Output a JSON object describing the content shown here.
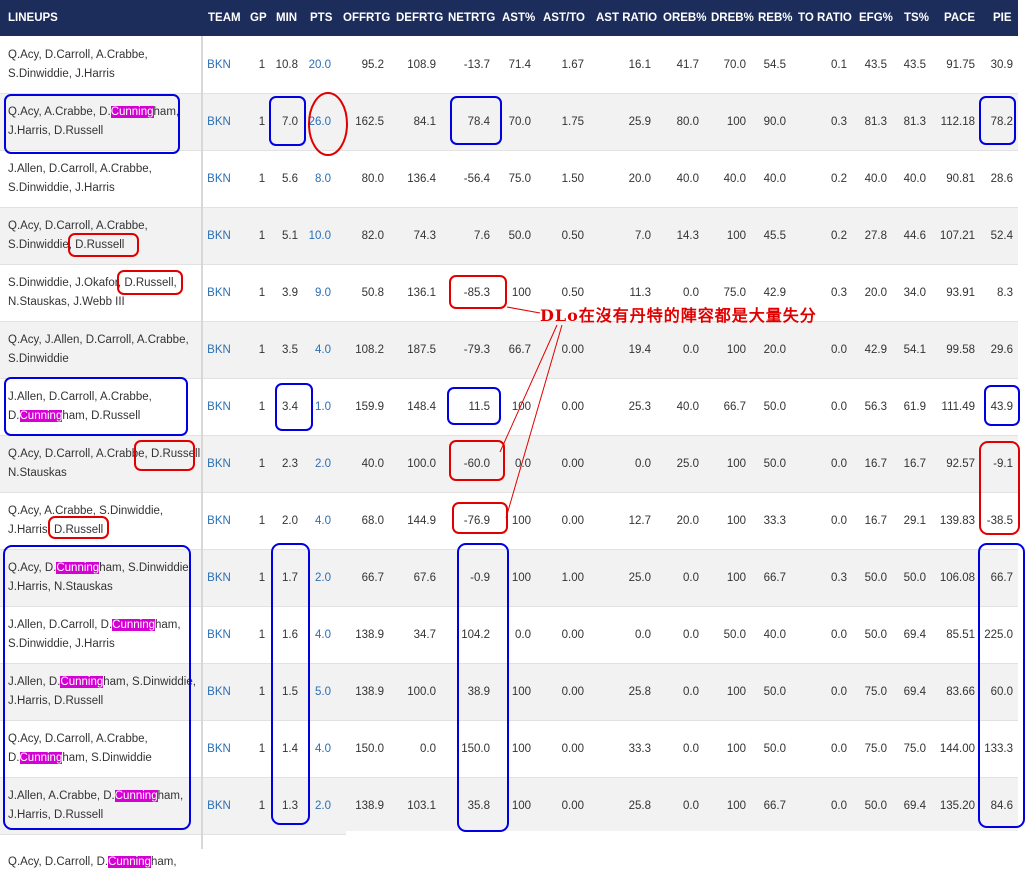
{
  "headers": [
    "LINEUPS",
    "TEAM",
    "GP",
    "MIN",
    "PTS",
    "OFFRTG",
    "DEFRTG",
    "NETRTG",
    "AST%",
    "AST/TO",
    "AST RATIO",
    "OREB%",
    "DREB%",
    "REB%",
    "TO RATIO",
    "EFG%",
    "TS%",
    "PACE",
    "PIE"
  ],
  "rows": [
    {
      "lineup": [
        [
          [
            "Q.Acy, D.Carroll, A.Crabbe,",
            false
          ]
        ],
        [
          [
            "S.Dinwiddie, J.Harris",
            false
          ]
        ]
      ],
      "team": "BKN",
      "gp": "1",
      "min": "10.8",
      "pts": "20.0",
      "offrtg": "95.2",
      "defrtg": "108.9",
      "netrtg": "-13.7",
      "ast_pct": "71.4",
      "ast_to": "1.67",
      "ast_ratio": "16.1",
      "oreb": "41.7",
      "dreb": "70.0",
      "reb": "54.5",
      "to_ratio": "0.1",
      "efg": "43.5",
      "ts": "43.5",
      "pace": "91.75",
      "pie": "30.9"
    },
    {
      "lineup": [
        [
          [
            "Q.Acy, A.Crabbe, D.",
            false
          ],
          [
            "Cunning",
            true
          ],
          [
            "ham,",
            false
          ]
        ],
        [
          [
            "J.Harris, D.Russell",
            false
          ]
        ]
      ],
      "team": "BKN",
      "gp": "1",
      "min": "7.0",
      "pts": "26.0",
      "offrtg": "162.5",
      "defrtg": "84.1",
      "netrtg": "78.4",
      "ast_pct": "70.0",
      "ast_to": "1.75",
      "ast_ratio": "25.9",
      "oreb": "80.0",
      "dreb": "100",
      "reb": "90.0",
      "to_ratio": "0.3",
      "efg": "81.3",
      "ts": "81.3",
      "pace": "112.18",
      "pie": "78.2"
    },
    {
      "lineup": [
        [
          [
            "J.Allen, D.Carroll, A.Crabbe,",
            false
          ]
        ],
        [
          [
            "S.Dinwiddie, J.Harris",
            false
          ]
        ]
      ],
      "team": "BKN",
      "gp": "1",
      "min": "5.6",
      "pts": "8.0",
      "offrtg": "80.0",
      "defrtg": "136.4",
      "netrtg": "-56.4",
      "ast_pct": "75.0",
      "ast_to": "1.50",
      "ast_ratio": "20.0",
      "oreb": "40.0",
      "dreb": "40.0",
      "reb": "40.0",
      "to_ratio": "0.2",
      "efg": "40.0",
      "ts": "40.0",
      "pace": "90.81",
      "pie": "28.6"
    },
    {
      "lineup": [
        [
          [
            "Q.Acy, D.Carroll, A.Crabbe,",
            false
          ]
        ],
        [
          [
            "S.Dinwiddie, D.Russell",
            false
          ]
        ]
      ],
      "team": "BKN",
      "gp": "1",
      "min": "5.1",
      "pts": "10.0",
      "offrtg": "82.0",
      "defrtg": "74.3",
      "netrtg": "7.6",
      "ast_pct": "50.0",
      "ast_to": "0.50",
      "ast_ratio": "7.0",
      "oreb": "14.3",
      "dreb": "100",
      "reb": "45.5",
      "to_ratio": "0.2",
      "efg": "27.8",
      "ts": "44.6",
      "pace": "107.21",
      "pie": "52.4"
    },
    {
      "lineup": [
        [
          [
            "S.Dinwiddie, J.Okafor, D.Russell,",
            false
          ]
        ],
        [
          [
            "N.Stauskas, J.Webb III",
            false
          ]
        ]
      ],
      "team": "BKN",
      "gp": "1",
      "min": "3.9",
      "pts": "9.0",
      "offrtg": "50.8",
      "defrtg": "136.1",
      "netrtg": "-85.3",
      "ast_pct": "100",
      "ast_to": "0.50",
      "ast_ratio": "11.3",
      "oreb": "0.0",
      "dreb": "75.0",
      "reb": "42.9",
      "to_ratio": "0.3",
      "efg": "20.0",
      "ts": "34.0",
      "pace": "93.91",
      "pie": "8.3"
    },
    {
      "lineup": [
        [
          [
            "Q.Acy, J.Allen, D.Carroll, A.Crabbe,",
            false
          ]
        ],
        [
          [
            "S.Dinwiddie",
            false
          ]
        ]
      ],
      "team": "BKN",
      "gp": "1",
      "min": "3.5",
      "pts": "4.0",
      "offrtg": "108.2",
      "defrtg": "187.5",
      "netrtg": "-79.3",
      "ast_pct": "66.7",
      "ast_to": "0.00",
      "ast_ratio": "19.4",
      "oreb": "0.0",
      "dreb": "100",
      "reb": "20.0",
      "to_ratio": "0.0",
      "efg": "42.9",
      "ts": "54.1",
      "pace": "99.58",
      "pie": "29.6"
    },
    {
      "lineup": [
        [
          [
            "J.Allen, D.Carroll, A.Crabbe,",
            false
          ]
        ],
        [
          [
            "D.",
            false
          ],
          [
            "Cunning",
            true
          ],
          [
            "ham, D.Russell",
            false
          ]
        ]
      ],
      "team": "BKN",
      "gp": "1",
      "min": "3.4",
      "pts": "1.0",
      "offrtg": "159.9",
      "defrtg": "148.4",
      "netrtg": "11.5",
      "ast_pct": "100",
      "ast_to": "0.00",
      "ast_ratio": "25.3",
      "oreb": "40.0",
      "dreb": "66.7",
      "reb": "50.0",
      "to_ratio": "0.0",
      "efg": "56.3",
      "ts": "61.9",
      "pace": "111.49",
      "pie": "43.9"
    },
    {
      "lineup": [
        [
          [
            "Q.Acy, D.Carroll, A.Crabbe, D.Russell,",
            false
          ]
        ],
        [
          [
            "N.Stauskas",
            false
          ]
        ]
      ],
      "team": "BKN",
      "gp": "1",
      "min": "2.3",
      "pts": "2.0",
      "offrtg": "40.0",
      "defrtg": "100.0",
      "netrtg": "-60.0",
      "ast_pct": "0.0",
      "ast_to": "0.00",
      "ast_ratio": "0.0",
      "oreb": "25.0",
      "dreb": "100",
      "reb": "50.0",
      "to_ratio": "0.0",
      "efg": "16.7",
      "ts": "16.7",
      "pace": "92.57",
      "pie": "-9.1"
    },
    {
      "lineup": [
        [
          [
            "Q.Acy, A.Crabbe, S.Dinwiddie,",
            false
          ]
        ],
        [
          [
            "J.Harris, D.Russell",
            false
          ]
        ]
      ],
      "team": "BKN",
      "gp": "1",
      "min": "2.0",
      "pts": "4.0",
      "offrtg": "68.0",
      "defrtg": "144.9",
      "netrtg": "-76.9",
      "ast_pct": "100",
      "ast_to": "0.00",
      "ast_ratio": "12.7",
      "oreb": "20.0",
      "dreb": "100",
      "reb": "33.3",
      "to_ratio": "0.0",
      "efg": "16.7",
      "ts": "29.1",
      "pace": "139.83",
      "pie": "-38.5"
    },
    {
      "lineup": [
        [
          [
            "Q.Acy, D.",
            false
          ],
          [
            "Cunning",
            true
          ],
          [
            "ham, S.Dinwiddie,",
            false
          ]
        ],
        [
          [
            "J.Harris, N.Stauskas",
            false
          ]
        ]
      ],
      "team": "BKN",
      "gp": "1",
      "min": "1.7",
      "pts": "2.0",
      "offrtg": "66.7",
      "defrtg": "67.6",
      "netrtg": "-0.9",
      "ast_pct": "100",
      "ast_to": "1.00",
      "ast_ratio": "25.0",
      "oreb": "0.0",
      "dreb": "100",
      "reb": "66.7",
      "to_ratio": "0.3",
      "efg": "50.0",
      "ts": "50.0",
      "pace": "106.08",
      "pie": "66.7"
    },
    {
      "lineup": [
        [
          [
            "J.Allen, D.Carroll, D.",
            false
          ],
          [
            "Cunning",
            true
          ],
          [
            "ham,",
            false
          ]
        ],
        [
          [
            "S.Dinwiddie, J.Harris",
            false
          ]
        ]
      ],
      "team": "BKN",
      "gp": "1",
      "min": "1.6",
      "pts": "4.0",
      "offrtg": "138.9",
      "defrtg": "34.7",
      "netrtg": "104.2",
      "ast_pct": "0.0",
      "ast_to": "0.00",
      "ast_ratio": "0.0",
      "oreb": "0.0",
      "dreb": "50.0",
      "reb": "40.0",
      "to_ratio": "0.0",
      "efg": "50.0",
      "ts": "69.4",
      "pace": "85.51",
      "pie": "225.0"
    },
    {
      "lineup": [
        [
          [
            "J.Allen, D.",
            false
          ],
          [
            "Cunning",
            true
          ],
          [
            "ham, S.Dinwiddie,",
            false
          ]
        ],
        [
          [
            "J.Harris, D.Russell",
            false
          ]
        ]
      ],
      "team": "BKN",
      "gp": "1",
      "min": "1.5",
      "pts": "5.0",
      "offrtg": "138.9",
      "defrtg": "100.0",
      "netrtg": "38.9",
      "ast_pct": "100",
      "ast_to": "0.00",
      "ast_ratio": "25.8",
      "oreb": "0.0",
      "dreb": "100",
      "reb": "50.0",
      "to_ratio": "0.0",
      "efg": "75.0",
      "ts": "69.4",
      "pace": "83.66",
      "pie": "60.0"
    },
    {
      "lineup": [
        [
          [
            "Q.Acy, D.Carroll, A.Crabbe,",
            false
          ]
        ],
        [
          [
            "D.",
            false
          ],
          [
            "Cunning",
            true
          ],
          [
            "ham, S.Dinwiddie",
            false
          ]
        ]
      ],
      "team": "BKN",
      "gp": "1",
      "min": "1.4",
      "pts": "4.0",
      "offrtg": "150.0",
      "defrtg": "0.0",
      "netrtg": "150.0",
      "ast_pct": "100",
      "ast_to": "0.00",
      "ast_ratio": "33.3",
      "oreb": "0.0",
      "dreb": "100",
      "reb": "50.0",
      "to_ratio": "0.0",
      "efg": "75.0",
      "ts": "75.0",
      "pace": "144.00",
      "pie": "133.3"
    },
    {
      "lineup": [
        [
          [
            "J.Allen, A.Crabbe, D.",
            false
          ],
          [
            "Cunning",
            true
          ],
          [
            "ham,",
            false
          ]
        ],
        [
          [
            "J.Harris, D.Russell",
            false
          ]
        ]
      ],
      "team": "BKN",
      "gp": "1",
      "min": "1.3",
      "pts": "2.0",
      "offrtg": "138.9",
      "defrtg": "103.1",
      "netrtg": "35.8",
      "ast_pct": "100",
      "ast_to": "0.00",
      "ast_ratio": "25.8",
      "oreb": "0.0",
      "dreb": "100",
      "reb": "66.7",
      "to_ratio": "0.0",
      "efg": "50.0",
      "ts": "69.4",
      "pace": "135.20",
      "pie": "84.6"
    },
    {
      "lineup": [
        [
          [
            "Q.Acy, D.Carroll, D.",
            false
          ],
          [
            "Cunning",
            true
          ],
          [
            "ham,",
            false
          ]
        ]
      ],
      "team": "",
      "gp": "",
      "min": "",
      "pts": "",
      "offrtg": "",
      "defrtg": "",
      "netrtg": "",
      "ast_pct": "",
      "ast_to": "",
      "ast_ratio": "",
      "oreb": "",
      "dreb": "",
      "reb": "",
      "to_ratio": "",
      "efg": "",
      "ts": "",
      "pace": "",
      "pie": ""
    }
  ],
  "annotation": {
    "note_text": "DLo在沒有丹特的陣容都是大量失分",
    "red_color": "#e00000",
    "blue_color": "#0000e0"
  },
  "colors": {
    "header_bg": "#1c2c5b",
    "highlight": "#d400d4",
    "link": "#2a6fb5"
  }
}
